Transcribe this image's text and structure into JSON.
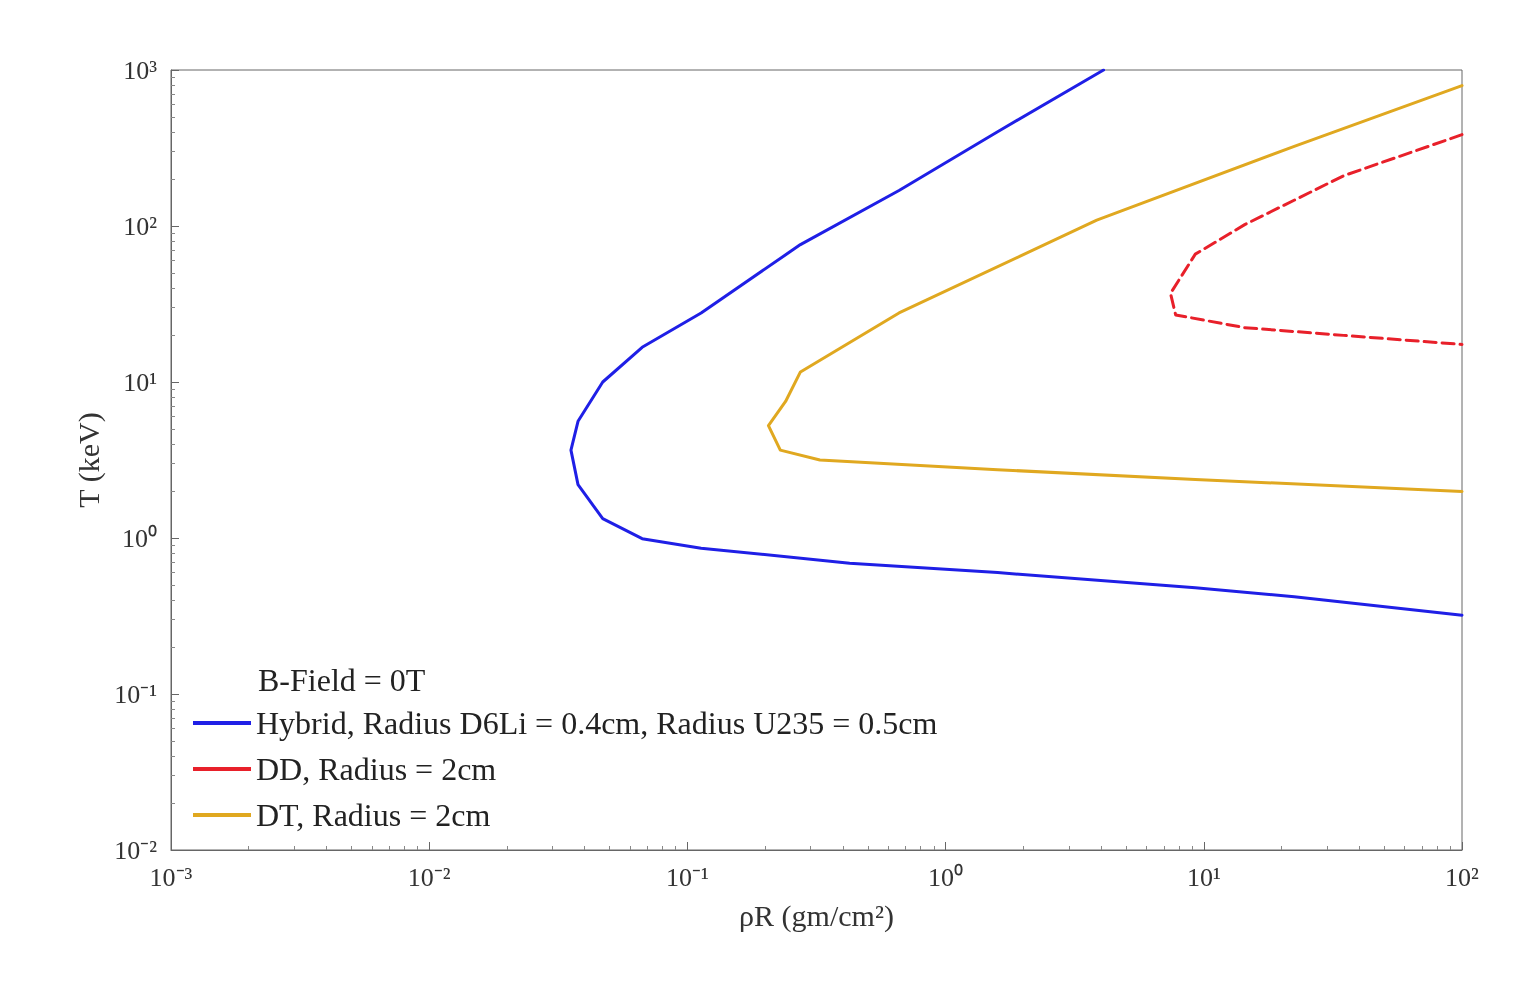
{
  "chart_data": {
    "type": "line",
    "xlabel": "ρR (gm/cm²)",
    "ylabel": "T (keV)",
    "legend_title": "B-Field = 0T",
    "log": "xy",
    "grid": false,
    "legend": "bottom left",
    "marker": "none",
    "xlim": [
      0.001,
      100
    ],
    "ylim": [
      0.01,
      1000
    ],
    "xticks": [
      {
        "value": 0.001,
        "label": "10⁻³"
      },
      {
        "value": 0.01,
        "label": "10⁻²"
      },
      {
        "value": 0.1,
        "label": "10⁻¹"
      },
      {
        "value": 1,
        "label": "10⁰"
      },
      {
        "value": 10,
        "label": "10¹"
      },
      {
        "value": 100,
        "label": "10²"
      }
    ],
    "yticks": [
      {
        "value": 0.01,
        "label": "10⁻²"
      },
      {
        "value": 0.1,
        "label": "10⁻¹"
      },
      {
        "value": 1,
        "label": "10⁰"
      },
      {
        "value": 10,
        "label": "10¹"
      },
      {
        "value": 100,
        "label": "10²"
      },
      {
        "value": 1000,
        "label": "10³"
      }
    ],
    "series": [
      {
        "name": "Hybrid, Radius D6Li = 0.4cm, Radius U235 = 0.5cm",
        "color": "#1f1fe6",
        "line_style": "solid",
        "x": [
          4.09,
          1.59,
          0.66,
          0.274,
          0.113,
          0.0668,
          0.047,
          0.0377,
          0.0354,
          0.0377,
          0.047,
          0.0668,
          0.113,
          0.425,
          1.59,
          9.27,
          22.4,
          100
        ],
        "values": [
          1000,
          402,
          169,
          76,
          27.7,
          16.7,
          10,
          5.6,
          3.66,
          2.2,
          1.33,
          0.99,
          0.86,
          0.69,
          0.6,
          0.48,
          0.42,
          0.32
        ]
      },
      {
        "name": "DD, Radius = 2cm",
        "color": "#e8202a",
        "line_style": "dashed",
        "x": [
          100,
          34.8,
          14.4,
          9.27,
          7.43,
          7.78,
          14.4,
          34.8,
          100
        ],
        "values": [
          385,
          210,
          102,
          66,
          37,
          26.9,
          22.3,
          19.9,
          17.4
        ]
      },
      {
        "name": "DT, Radius = 2cm",
        "color": "#e0a820",
        "line_style": "solid",
        "x": [
          100,
          22.4,
          3.85,
          0.66,
          0.274,
          0.24,
          0.206,
          0.229,
          0.326,
          1.59,
          9.27,
          100
        ],
        "values": [
          794,
          324,
          109,
          27.7,
          11.6,
          7.5,
          5.25,
          3.66,
          3.16,
          2.74,
          2.37,
          1.99
        ]
      }
    ]
  }
}
